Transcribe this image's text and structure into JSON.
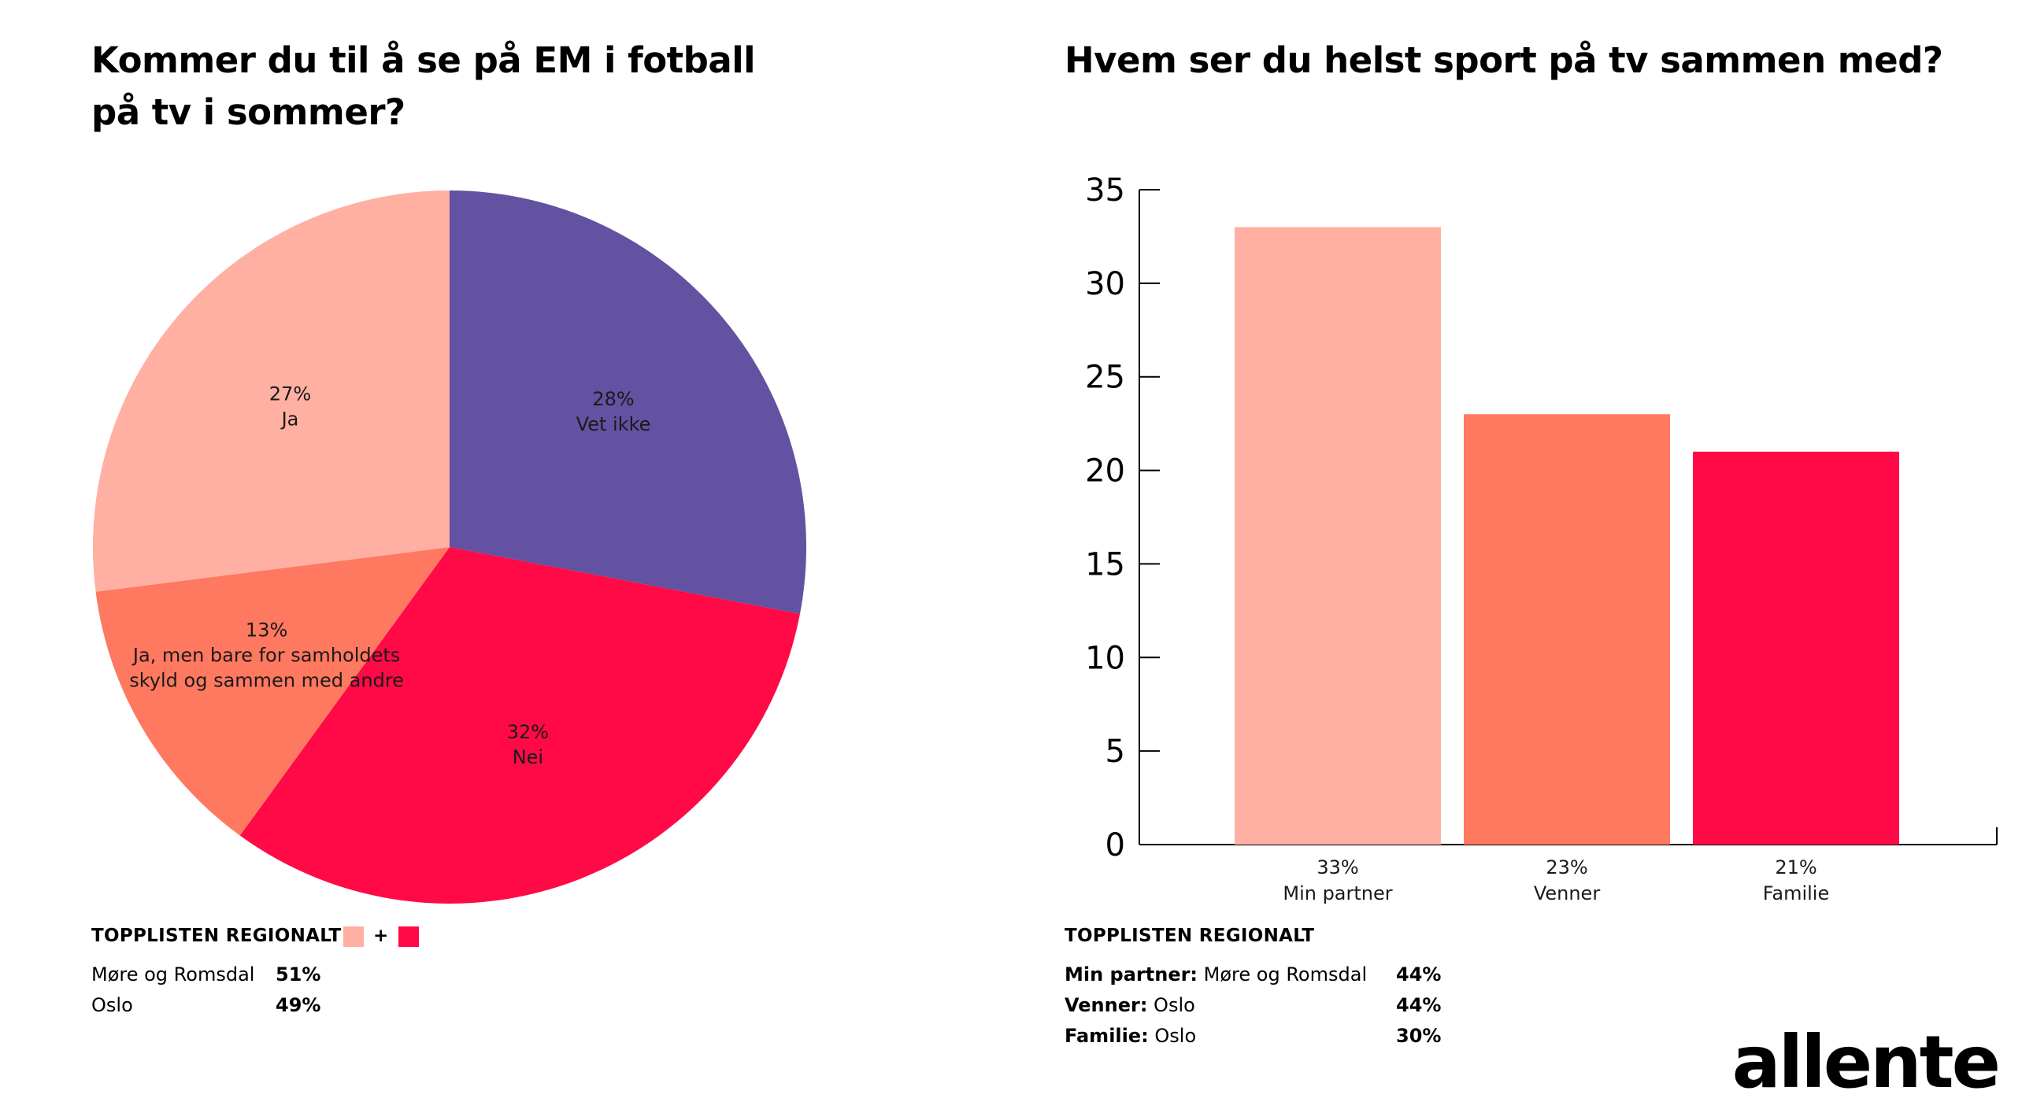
{
  "pie": {
    "title_line1": "Kommer du til å se på EM i fotball",
    "title_line2": "på tv i sommer?",
    "slices": [
      {
        "pct": "28%",
        "label_lines": [
          "Vet ikke"
        ],
        "value": 28,
        "color": "#6351A1"
      },
      {
        "pct": "32%",
        "label_lines": [
          "Nei"
        ],
        "value": 32,
        "color": "#FF0A46"
      },
      {
        "pct": "13%",
        "label_lines": [
          "Ja, men bare for samholdets",
          "skyld og sammen med andre"
        ],
        "value": 13,
        "color": "#FF7860"
      },
      {
        "pct": "27%",
        "label_lines": [
          "Ja"
        ],
        "value": 27,
        "color": "#FFB0A2"
      }
    ],
    "regional_header": "TOPPLISTEN REGIONALT",
    "plus": "+",
    "regional_swatches": [
      "#FFB0A2",
      "#FF0A46"
    ],
    "regional_rows": [
      {
        "region": "Møre og Romsdal",
        "value": "51%"
      },
      {
        "region": "Oslo",
        "value": "49%"
      }
    ]
  },
  "bar": {
    "title": "Hvem ser du helst sport på tv sammen med?",
    "regional_header": "TOPPLISTEN REGIONALT",
    "regional_rows": [
      {
        "category": "Min partner:",
        "region": " Møre og Romsdal",
        "value": "44%"
      },
      {
        "category": "Venner:",
        "region": " Oslo",
        "value": "44%"
      },
      {
        "category": "Familie:",
        "region": " Oslo",
        "value": "30%"
      }
    ]
  },
  "chart_data": [
    {
      "type": "pie",
      "title": "Kommer du til å se på EM i fotball på tv i sommer?",
      "categories": [
        "Vet ikke",
        "Nei",
        "Ja, men bare for samholdets skyld og sammen med andre",
        "Ja"
      ],
      "values": [
        28,
        32,
        13,
        27
      ],
      "colors": [
        "#6351A1",
        "#FF0A46",
        "#FF7860",
        "#FFB0A2"
      ]
    },
    {
      "type": "bar",
      "title": "Hvem ser du helst sport på tv sammen med?",
      "categories": [
        "Min partner",
        "Venner",
        "Familie"
      ],
      "values": [
        33,
        23,
        21
      ],
      "value_labels": [
        "33%",
        "23%",
        "21%"
      ],
      "colors": [
        "#FFB0A2",
        "#FF7860",
        "#FF0A46"
      ],
      "ylim": [
        0,
        35
      ],
      "yticks": [
        0,
        5,
        10,
        15,
        20,
        25,
        30,
        35
      ],
      "grid": false,
      "xlabel": "",
      "ylabel": ""
    }
  ],
  "logo": {
    "text": "allente"
  }
}
